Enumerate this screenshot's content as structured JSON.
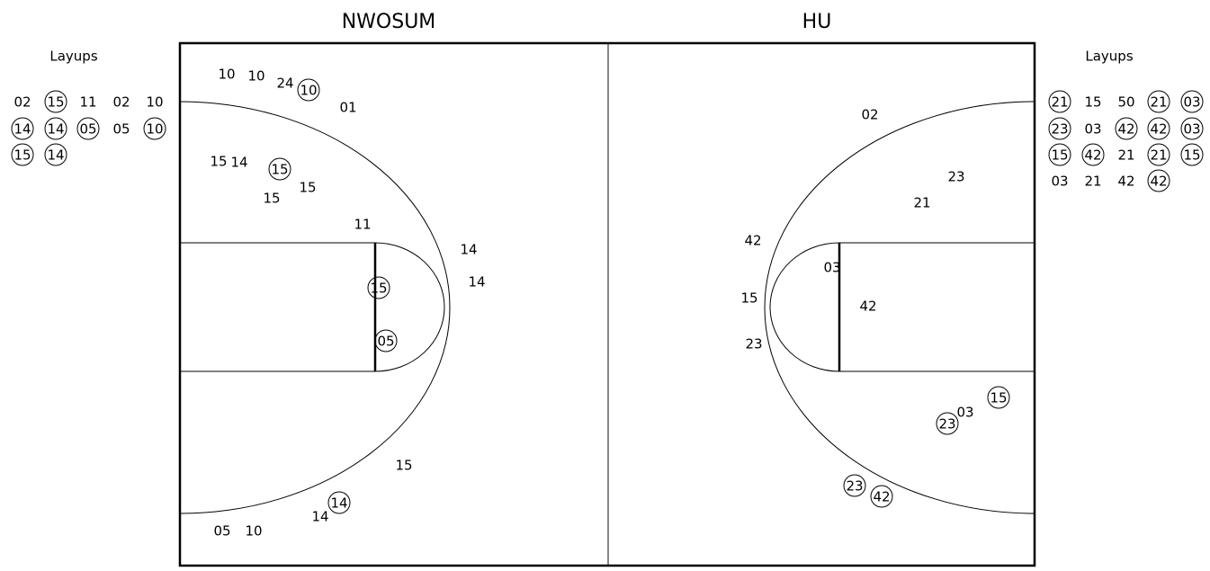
{
  "teams": [
    {
      "name": "NWOSUM",
      "layups_label": "Layups",
      "layups": [
        {
          "player": "02",
          "made": false
        },
        {
          "player": "15",
          "made": true
        },
        {
          "player": "11",
          "made": false
        },
        {
          "player": "02",
          "made": false
        },
        {
          "player": "10",
          "made": false
        },
        {
          "player": "14",
          "made": true
        },
        {
          "player": "14",
          "made": true
        },
        {
          "player": "05",
          "made": true
        },
        {
          "player": "05",
          "made": false
        },
        {
          "player": "10",
          "made": true
        },
        {
          "player": "15",
          "made": true
        },
        {
          "player": "14",
          "made": true
        }
      ],
      "shots": [
        {
          "player": "10",
          "made": false
        },
        {
          "player": "10",
          "made": false
        },
        {
          "player": "24",
          "made": false
        },
        {
          "player": "10",
          "made": true
        },
        {
          "player": "01",
          "made": false
        },
        {
          "player": "15",
          "made": false
        },
        {
          "player": "14",
          "made": false
        },
        {
          "player": "15",
          "made": true
        },
        {
          "player": "15",
          "made": false
        },
        {
          "player": "15",
          "made": false
        },
        {
          "player": "11",
          "made": false
        },
        {
          "player": "14",
          "made": false
        },
        {
          "player": "14",
          "made": false
        },
        {
          "player": "15",
          "made": true
        },
        {
          "player": "05",
          "made": true
        },
        {
          "player": "15",
          "made": false
        },
        {
          "player": "14",
          "made": true
        },
        {
          "player": "14",
          "made": false
        },
        {
          "player": "05",
          "made": false
        },
        {
          "player": "10",
          "made": false
        }
      ]
    },
    {
      "name": "HU",
      "layups_label": "Layups",
      "layups": [
        {
          "player": "21",
          "made": true
        },
        {
          "player": "15",
          "made": false
        },
        {
          "player": "50",
          "made": false
        },
        {
          "player": "21",
          "made": true
        },
        {
          "player": "03",
          "made": true
        },
        {
          "player": "23",
          "made": true
        },
        {
          "player": "03",
          "made": false
        },
        {
          "player": "42",
          "made": true
        },
        {
          "player": "42",
          "made": true
        },
        {
          "player": "03",
          "made": true
        },
        {
          "player": "15",
          "made": true
        },
        {
          "player": "42",
          "made": true
        },
        {
          "player": "21",
          "made": false
        },
        {
          "player": "21",
          "made": true
        },
        {
          "player": "15",
          "made": true
        },
        {
          "player": "03",
          "made": false
        },
        {
          "player": "21",
          "made": false
        },
        {
          "player": "42",
          "made": false
        },
        {
          "player": "42",
          "made": true
        }
      ],
      "shots": [
        {
          "player": "02",
          "made": false
        },
        {
          "player": "23",
          "made": false
        },
        {
          "player": "21",
          "made": false
        },
        {
          "player": "42",
          "made": false
        },
        {
          "player": "03",
          "made": false
        },
        {
          "player": "42",
          "made": false
        },
        {
          "player": "15",
          "made": false
        },
        {
          "player": "23",
          "made": false
        },
        {
          "player": "15",
          "made": true
        },
        {
          "player": "03",
          "made": false
        },
        {
          "player": "23",
          "made": true
        },
        {
          "player": "23",
          "made": true
        },
        {
          "player": "42",
          "made": true
        }
      ]
    }
  ]
}
